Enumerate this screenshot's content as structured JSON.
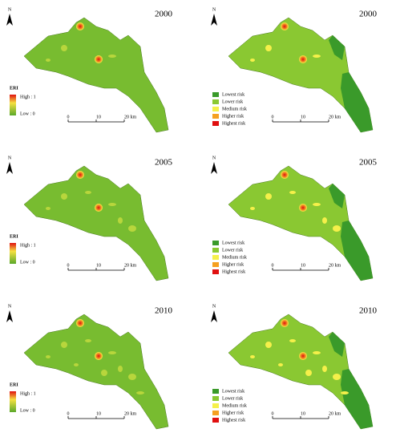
{
  "panels": [
    {
      "year": "2000",
      "north": "N",
      "legend_title": "ERI",
      "legend_high": "High : 1",
      "legend_low": "Low : 0",
      "scale": [
        "0",
        "10",
        "20 km"
      ]
    },
    {
      "year": "2000",
      "north": "N",
      "legend": [
        {
          "label": "Lowest risk",
          "color": "#3a9a2a"
        },
        {
          "label": "Lower risk",
          "color": "#8ac832"
        },
        {
          "label": "Medium risk",
          "color": "#f5f04a"
        },
        {
          "label": "Higher risk",
          "color": "#f5a020"
        },
        {
          "label": "Highest risk",
          "color": "#e01010"
        }
      ],
      "scale": [
        "0",
        "10",
        "20 km"
      ]
    },
    {
      "year": "2005",
      "north": "N",
      "legend_title": "ERI",
      "legend_high": "High : 1",
      "legend_low": "Low : 0",
      "scale": [
        "0",
        "10",
        "20 km"
      ]
    },
    {
      "year": "2005",
      "north": "N",
      "legend": [
        {
          "label": "Lowest risk",
          "color": "#3a9a2a"
        },
        {
          "label": "Lower risk",
          "color": "#8ac832"
        },
        {
          "label": "Medium risk",
          "color": "#f5f04a"
        },
        {
          "label": "Higher risk",
          "color": "#f5a020"
        },
        {
          "label": "Highest risk",
          "color": "#e01010"
        }
      ],
      "scale": [
        "0",
        "10",
        "20 km"
      ]
    },
    {
      "year": "2010",
      "north": "N",
      "legend_title": "ERI",
      "legend_high": "High : 1",
      "legend_low": "Low : 0",
      "scale": [
        "0",
        "10",
        "20 km"
      ]
    },
    {
      "year": "2010",
      "north": "N",
      "legend": [
        {
          "label": "Lowest risk",
          "color": "#3a9a2a"
        },
        {
          "label": "Lower risk",
          "color": "#8ac832"
        },
        {
          "label": "Medium risk",
          "color": "#f5f04a"
        },
        {
          "label": "Higher risk",
          "color": "#f5a020"
        },
        {
          "label": "Highest risk",
          "color": "#e01010"
        }
      ],
      "scale": [
        "0",
        "10",
        "20 km"
      ]
    }
  ]
}
